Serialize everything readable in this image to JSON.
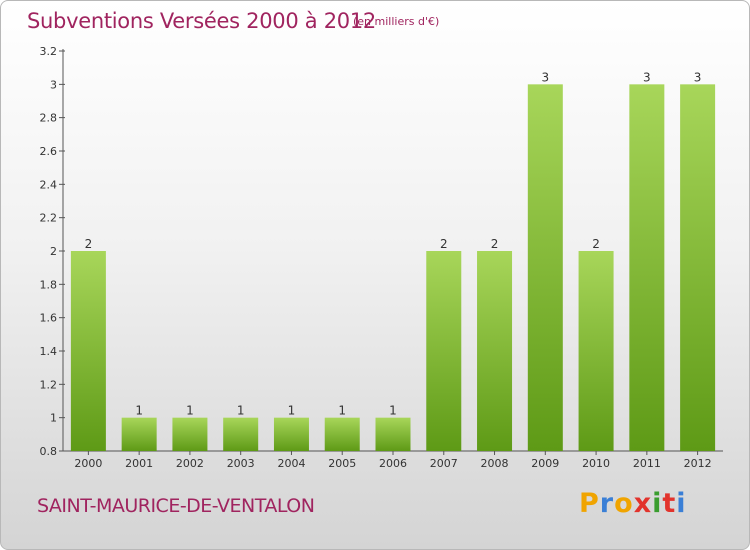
{
  "header": {
    "title": "Subventions Versées 2000 à 2012",
    "unit_note": "(en milliers d'€)"
  },
  "footer": {
    "commune": "SAINT-MAURICE-DE-VENTALON",
    "logo_text": "Proxiti",
    "logo_letter_colors": [
      "#f0a400",
      "#3a7fd6",
      "#f0a400",
      "#e2332c",
      "#3a9d2f",
      "#e2332c",
      "#3a7fd6"
    ]
  },
  "colors": {
    "title": "#a0245f",
    "bar_top": "#a8d65a",
    "bar_bottom": "#5e9a16"
  },
  "chart_data": {
    "type": "bar",
    "title": "Subventions Versées 2000 à 2012",
    "subtitle": "(en milliers d'€)",
    "xlabel": "",
    "ylabel": "",
    "categories": [
      "2000",
      "2001",
      "2002",
      "2003",
      "2004",
      "2005",
      "2006",
      "2007",
      "2008",
      "2009",
      "2010",
      "2011",
      "2012"
    ],
    "values": [
      2,
      1,
      1,
      1,
      1,
      1,
      1,
      2,
      2,
      3,
      2,
      3,
      3
    ],
    "data_labels": [
      "2",
      "1",
      "1",
      "1",
      "1",
      "1",
      "1",
      "2",
      "2",
      "3",
      "2",
      "3",
      "3"
    ],
    "ylim": [
      0.8,
      3.2
    ],
    "yticks": [
      0.8,
      1,
      1.2,
      1.4,
      1.6,
      1.8,
      2,
      2.2,
      2.4,
      2.6,
      2.8,
      3,
      3.2
    ],
    "ytick_labels": [
      "0.8",
      "1",
      "1.2",
      "1.4",
      "1.6",
      "1.8",
      "2",
      "2.2",
      "2.4",
      "2.6",
      "2.8",
      "3",
      "3.2"
    ],
    "grid": false,
    "legend": "none"
  }
}
